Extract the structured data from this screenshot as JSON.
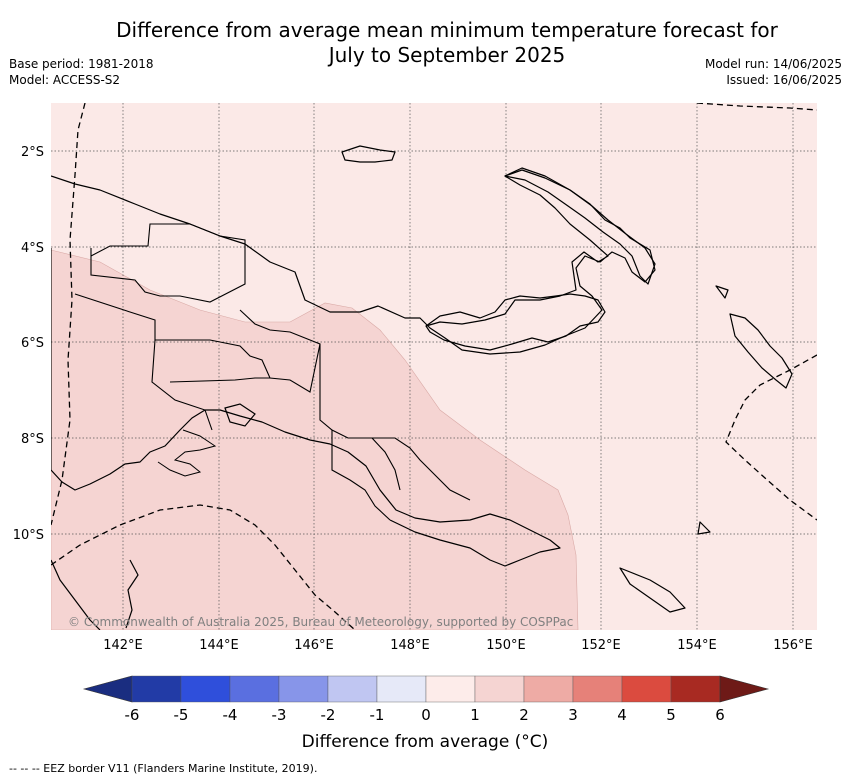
{
  "header": {
    "title_line1": "Difference from average mean minimum temperature forecast for",
    "title_line2": "July to September 2025",
    "base_period": "Base period: 1981-2018",
    "model": "Model: ACCESS-S2",
    "model_run": "Model run: 14/06/2025",
    "issued": "Issued: 16/06/2025"
  },
  "map": {
    "lat_labels": [
      "2°S",
      "4°S",
      "6°S",
      "8°S",
      "10°S"
    ],
    "lon_labels": [
      "142°E",
      "144°E",
      "146°E",
      "148°E",
      "150°E",
      "152°E",
      "154°E",
      "156°E"
    ],
    "copyright": "© Commonwealth of Australia 2025, Bureau of Meteorology, supported by COSPPac",
    "fill_colors": {
      "zero_to_one": "#fbe9e7",
      "one_to_two": "#f5d4d2"
    }
  },
  "colorbar": {
    "ticks": [
      "-6",
      "-5",
      "-4",
      "-3",
      "-2",
      "-1",
      "0",
      "1",
      "2",
      "3",
      "4",
      "5",
      "6"
    ],
    "colors": [
      "#223ba6",
      "#2f4fdb",
      "#5a6fe0",
      "#8795e9",
      "#c0c6f2",
      "#e6e9f8",
      "#fdecea",
      "#f5d4d2",
      "#eeaba5",
      "#e68179",
      "#db4b3f",
      "#a82a22"
    ],
    "low_extend_color": "#1a2d80",
    "high_extend_color": "#6e1a17",
    "label": "Difference from average (°C)"
  },
  "footnote": "--  --  -- EEZ border V11 (Flanders Marine Institute, 2019)."
}
